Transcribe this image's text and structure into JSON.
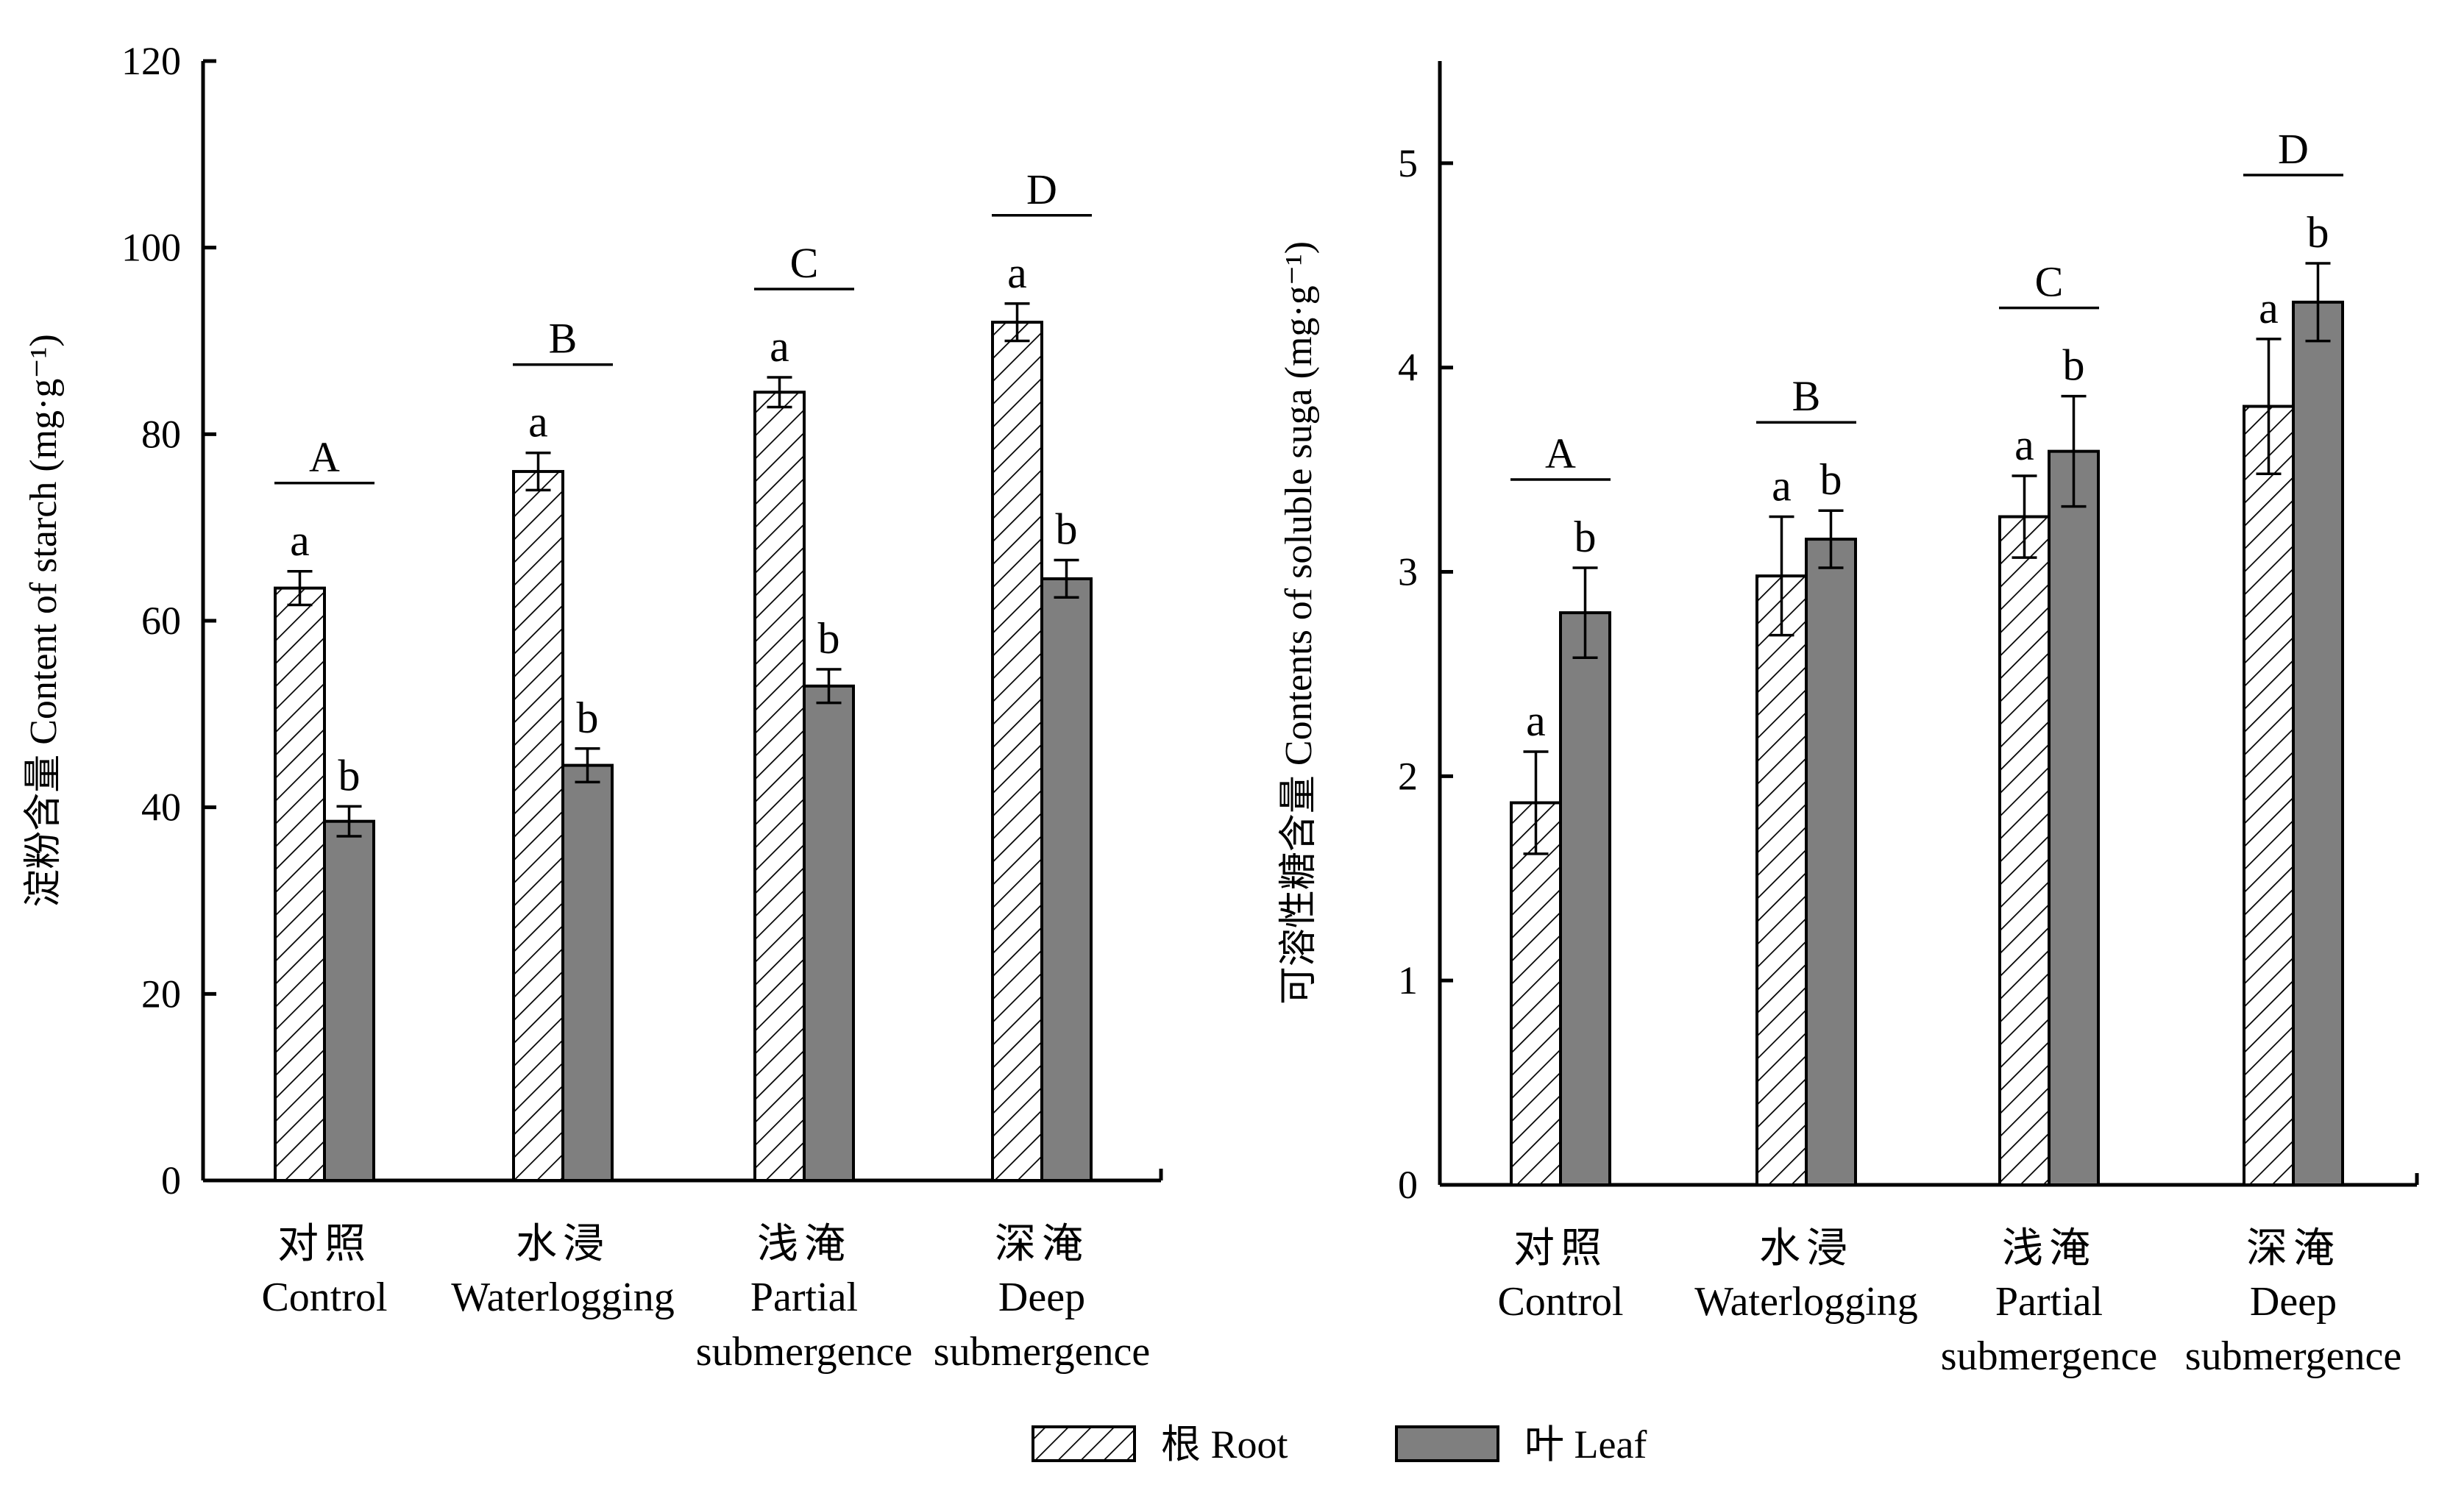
{
  "colors": {
    "axis": "#000000",
    "leaf_fill": "#7f7f7f",
    "root_fill": "#ffffff",
    "hatch": "#000000"
  },
  "legend": {
    "items": [
      {
        "label": "根 Root",
        "pattern": "hatched"
      },
      {
        "label": "叶 Leaf",
        "pattern": "solid-gray"
      }
    ]
  },
  "chart_data": [
    {
      "type": "bar",
      "ylabel": "淀粉含量 Content of starch (mg·g⁻¹)",
      "ylim": [
        0,
        120
      ],
      "yticks": [
        "0",
        "20",
        "40",
        "60",
        "80",
        "100",
        "120"
      ],
      "categories": [
        {
          "cn": "对照",
          "en": [
            "Control"
          ]
        },
        {
          "cn": "水浸",
          "en": [
            "Waterlogging"
          ]
        },
        {
          "cn": "浅淹",
          "en": [
            "Partial",
            "submergence"
          ]
        },
        {
          "cn": "深淹",
          "en": [
            "Deep",
            "submergence"
          ]
        }
      ],
      "series": [
        {
          "name": "根 Root",
          "values": [
            63.5,
            76,
            84.5,
            92
          ],
          "errors": [
            1.8,
            2.0,
            1.6,
            2.0
          ],
          "letters": [
            "a",
            "a",
            "a",
            "a"
          ]
        },
        {
          "name": "叶 Leaf",
          "values": [
            38.5,
            44.5,
            53,
            64.5
          ],
          "errors": [
            1.6,
            1.8,
            1.8,
            2.0
          ],
          "letters": [
            "b",
            "b",
            "b",
            "b"
          ]
        }
      ],
      "group_letters": [
        "A",
        "B",
        "C",
        "D"
      ],
      "grid": false
    },
    {
      "type": "bar",
      "ylabel": "可溶性糖含量 Contents of soluble suga (mg·g⁻¹)",
      "ylim": [
        0,
        5.5
      ],
      "yticks": [
        "0",
        "1",
        "2",
        "3",
        "4",
        "5"
      ],
      "categories": [
        {
          "cn": "对照",
          "en": [
            "Control"
          ]
        },
        {
          "cn": "水浸",
          "en": [
            "Waterlogging"
          ]
        },
        {
          "cn": "浅淹",
          "en": [
            "Partial",
            "submergence"
          ]
        },
        {
          "cn": "深淹",
          "en": [
            "Deep",
            "submergence"
          ]
        }
      ],
      "series": [
        {
          "name": "根 Root",
          "values": [
            1.87,
            2.98,
            3.27,
            3.81
          ],
          "errors": [
            0.25,
            0.29,
            0.2,
            0.33
          ],
          "letters": [
            "a",
            "a",
            "a",
            "a"
          ]
        },
        {
          "name": "叶 Leaf",
          "values": [
            2.8,
            3.16,
            3.59,
            4.32
          ],
          "errors": [
            0.22,
            0.14,
            0.27,
            0.19
          ],
          "letters": [
            "b",
            "b",
            "b",
            "b"
          ]
        }
      ],
      "group_letters": [
        "A",
        "B",
        "C",
        "D"
      ],
      "grid": false
    }
  ]
}
